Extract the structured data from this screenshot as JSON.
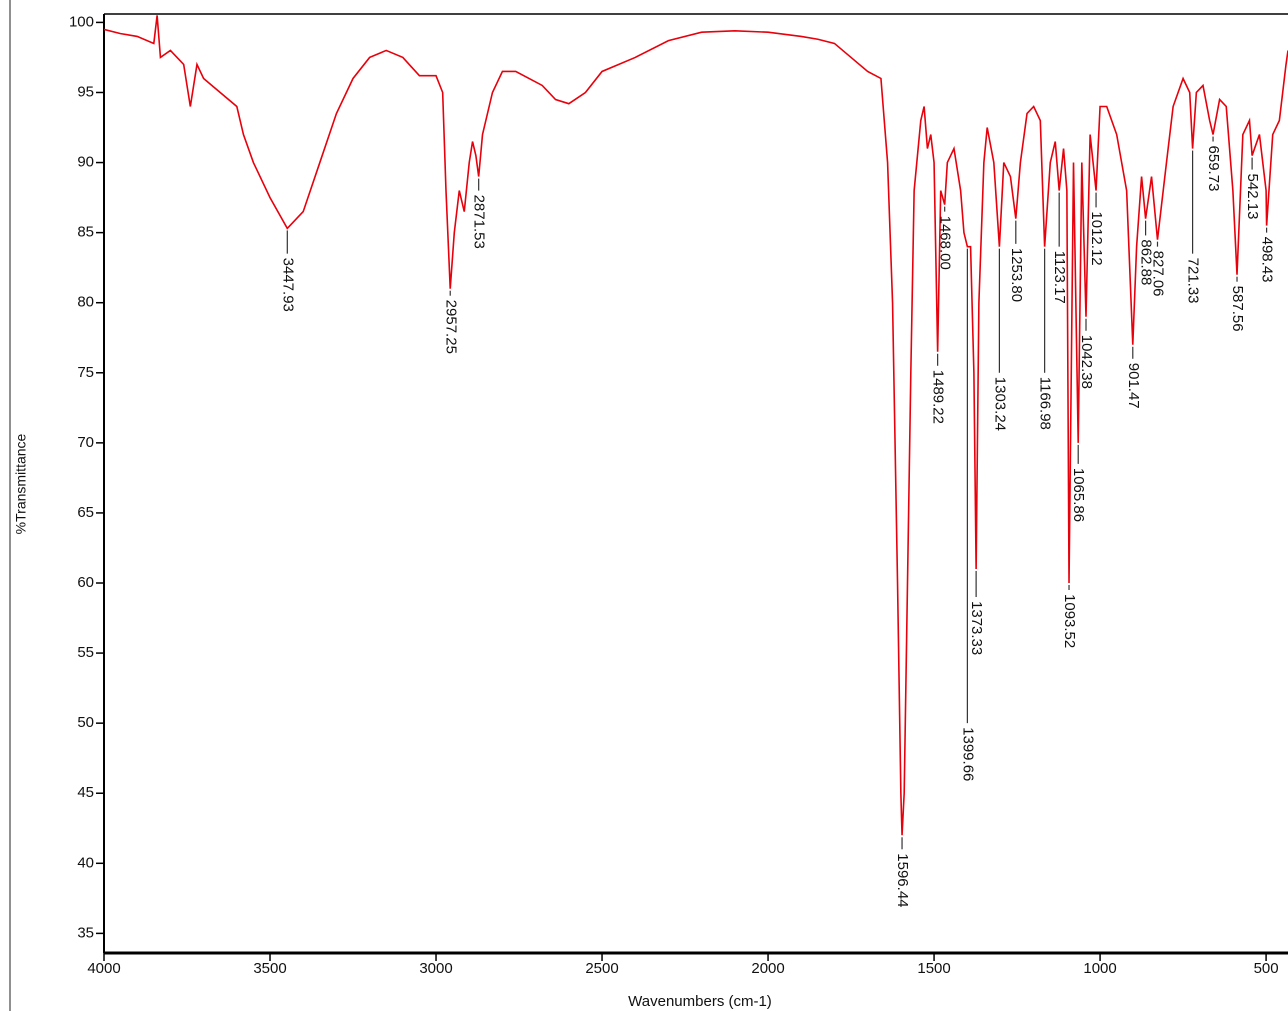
{
  "chart_data": {
    "type": "line",
    "x_label": "Wavenumbers (cm-1)",
    "y_label": "%Transmittance",
    "color": "#e8000b",
    "grid": false,
    "xlim": [
      4000,
      434
    ],
    "ylim": [
      33.6,
      100.6
    ],
    "xticks": [
      4000,
      3500,
      3000,
      2500,
      2000,
      1500,
      1000,
      500
    ],
    "yticks": [
      35,
      40,
      45,
      50,
      55,
      60,
      65,
      70,
      75,
      80,
      85,
      90,
      95,
      100
    ],
    "x": [
      4000,
      3950,
      3900,
      3850,
      3840,
      3830,
      3800,
      3760,
      3740,
      3720,
      3700,
      3650,
      3600,
      3580,
      3550,
      3500,
      3447.93,
      3400,
      3350,
      3300,
      3250,
      3200,
      3150,
      3100,
      3050,
      3000,
      2980,
      2970,
      2957.25,
      2945,
      2930,
      2915,
      2900,
      2890,
      2880,
      2871.53,
      2860,
      2830,
      2800,
      2760,
      2720,
      2680,
      2640,
      2600,
      2550,
      2500,
      2400,
      2300,
      2200,
      2100,
      2000,
      1900,
      1850,
      1800,
      1750,
      1700,
      1660,
      1640,
      1625,
      1610,
      1600,
      1596.44,
      1590,
      1580,
      1570,
      1560,
      1540,
      1530,
      1520,
      1510,
      1500,
      1489.22,
      1480,
      1468,
      1460,
      1440,
      1420,
      1410,
      1399.66,
      1390,
      1380,
      1373.33,
      1365,
      1350,
      1340,
      1320,
      1303.24,
      1290,
      1270,
      1253.8,
      1240,
      1220,
      1200,
      1180,
      1166.98,
      1150,
      1135,
      1123.17,
      1110,
      1100,
      1093.52,
      1080,
      1065.86,
      1055,
      1042.38,
      1030,
      1012.12,
      1000,
      980,
      950,
      920,
      901.47,
      890,
      875,
      862.88,
      845,
      827.06,
      800,
      780,
      750,
      730,
      721.33,
      710,
      690,
      670,
      659.73,
      640,
      620,
      600,
      587.56,
      570,
      550,
      542.13,
      520,
      500,
      498.43,
      480,
      460,
      440,
      434
    ],
    "values": [
      99.5,
      99.2,
      99,
      98.5,
      100.5,
      97.5,
      98,
      97,
      94,
      97,
      96,
      95,
      94,
      92,
      90,
      87.5,
      85.3,
      86.5,
      90,
      93.5,
      96,
      97.5,
      98,
      97.5,
      96.2,
      96.2,
      95,
      88,
      81,
      85,
      88,
      86.5,
      90,
      91.5,
      90.5,
      89,
      92,
      95,
      96.5,
      96.5,
      96,
      95.5,
      94.5,
      94.2,
      95,
      96.5,
      97.5,
      98.7,
      99.3,
      99.4,
      99.3,
      99,
      98.8,
      98.5,
      97.5,
      96.5,
      96,
      90,
      80,
      60,
      45,
      42,
      45,
      60,
      75,
      88,
      93,
      94,
      91,
      92,
      90,
      76.5,
      88,
      87,
      90,
      91,
      88,
      85,
      84,
      84,
      75,
      61,
      80,
      90,
      92.5,
      90,
      84,
      90,
      89,
      86,
      90,
      93.5,
      94,
      93,
      84,
      90,
      91.5,
      88,
      91,
      88,
      60,
      90,
      70,
      90,
      79,
      92,
      88,
      94,
      94,
      92,
      88,
      77,
      84,
      89,
      86,
      89,
      84.5,
      90,
      94,
      96,
      95,
      91,
      95,
      95.5,
      93,
      92,
      94.5,
      94,
      88,
      82,
      92,
      93,
      90.5,
      92,
      88,
      85.5,
      92,
      93,
      97,
      98
    ],
    "peaks": {
      "x": [
        3447.93,
        2957.25,
        2871.53,
        1596.44,
        1489.22,
        1468.0,
        1399.66,
        1373.33,
        1303.24,
        1253.8,
        1166.98,
        1123.17,
        1093.52,
        1065.86,
        1042.38,
        1012.12,
        901.47,
        862.88,
        827.06,
        721.33,
        659.73,
        587.56,
        542.13,
        498.43
      ],
      "values": [
        83.5,
        80.5,
        88,
        41,
        75.5,
        86.5,
        50,
        59,
        75,
        84.2,
        75,
        84,
        59.5,
        68.5,
        78,
        86.8,
        76,
        84.8,
        84,
        83.5,
        91.5,
        81.5,
        89.5,
        85
      ],
      "labels": [
        "3447.93",
        "2957.25",
        "2871.53",
        "1596.44",
        "1489.22",
        "1468.00",
        "1399.66",
        "1373.33",
        "1303.24",
        "1253.80",
        "1166.98",
        "1123.17",
        "1093.52",
        "1065.86",
        "1042.38",
        "1012.12",
        "901.47",
        "862.88",
        "827.06",
        "721.33",
        "659.73",
        "587.56",
        "542.13",
        "498.43"
      ]
    }
  }
}
